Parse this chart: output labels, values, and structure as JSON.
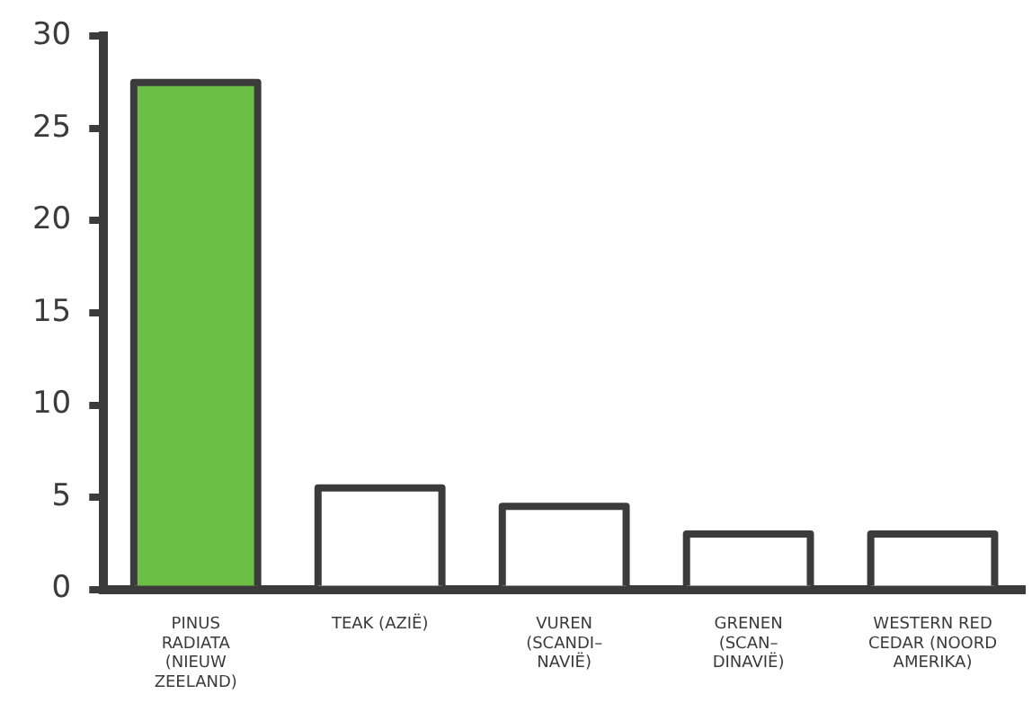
{
  "chart_data": {
    "type": "bar",
    "categories": [
      "PINUS RADIATA (NIEUW ZEELAND)",
      "TEAK (AZIË)",
      "VUREN (SCANDI– NAVIË)",
      "GRENEN (SCAN– DINAVIË)",
      "WESTERN RED CEDAR (NOORD AMERIKA)"
    ],
    "values": [
      27.5,
      5.5,
      4.5,
      3,
      3
    ],
    "colors": [
      "#6cbf45",
      "#ffffff",
      "#ffffff",
      "#ffffff",
      "#ffffff"
    ],
    "ylim": [
      0,
      30
    ],
    "yticks": [
      0,
      5,
      10,
      15,
      20,
      25,
      30
    ],
    "grid": false,
    "legend": false
  }
}
